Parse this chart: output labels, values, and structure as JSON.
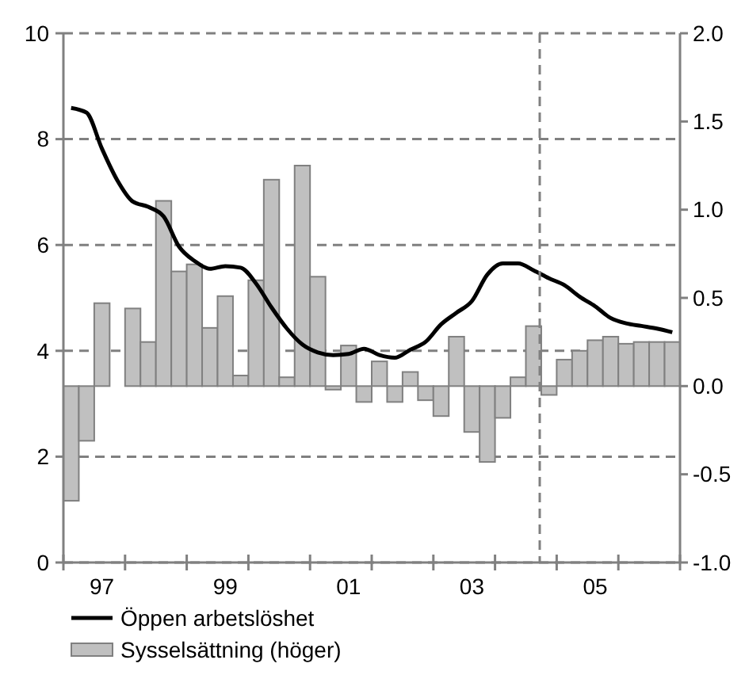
{
  "chart_data": {
    "type": "bar",
    "categories": [
      null,
      null,
      "97",
      null,
      null,
      null,
      null,
      null,
      null,
      null,
      "99",
      null,
      null,
      null,
      null,
      null,
      null,
      null,
      "01",
      null,
      null,
      null,
      null,
      null,
      null,
      null,
      "03",
      null,
      null,
      null,
      null,
      null,
      null,
      null,
      "05",
      null,
      null,
      null,
      null,
      null
    ],
    "ylim": [
      0,
      10
    ],
    "yticks": [
      0,
      2,
      4,
      6,
      8,
      10
    ],
    "y2lim": [
      -1,
      2
    ],
    "y2ticks": [
      {
        "value": -1,
        "label": "-1.0"
      },
      {
        "value": -0.5,
        "label": "-0.5"
      },
      {
        "value": 0,
        "label": "0.0"
      },
      {
        "value": 0.5,
        "label": "0.5"
      },
      {
        "value": 1,
        "label": "1.0"
      },
      {
        "value": 1.5,
        "label": "1.5"
      },
      {
        "value": 2,
        "label": "2.0"
      }
    ],
    "grid": "y",
    "legend": "bottom",
    "series": [
      {
        "name": "Öppen arbetslöshet",
        "type": "line",
        "color": "#000000",
        "values": [
          8.59,
          8.5,
          7.82,
          7.22,
          6.82,
          6.72,
          6.54,
          5.97,
          5.7,
          5.55,
          5.6,
          5.57,
          5.27,
          4.82,
          4.42,
          4.12,
          3.97,
          3.92,
          3.94,
          4.04,
          3.92,
          3.87,
          4.02,
          4.17,
          4.5,
          4.72,
          4.94,
          5.44,
          5.65,
          5.65,
          5.52,
          5.37,
          5.24,
          5.02,
          4.84,
          4.62,
          4.52,
          4.47,
          4.42,
          4.35
        ]
      },
      {
        "name": "Sysselsättning (höger)",
        "axis": "y2",
        "color": "#c0c0c0",
        "values": [
          -0.65,
          -0.31,
          0.47,
          0,
          0.44,
          0.25,
          1.05,
          0.65,
          0.69,
          0.33,
          0.51,
          0.06,
          0.6,
          1.17,
          0.05,
          1.25,
          0.62,
          -0.02,
          0.23,
          -0.09,
          0.14,
          -0.09,
          0.08,
          -0.08,
          -0.17,
          0.28,
          -0.26,
          -0.43,
          -0.18,
          0.05,
          0.34,
          -0.05,
          0.15,
          0.2,
          0.26,
          0.28,
          0.24,
          0.25,
          0.25,
          0.25
        ]
      }
    ]
  }
}
